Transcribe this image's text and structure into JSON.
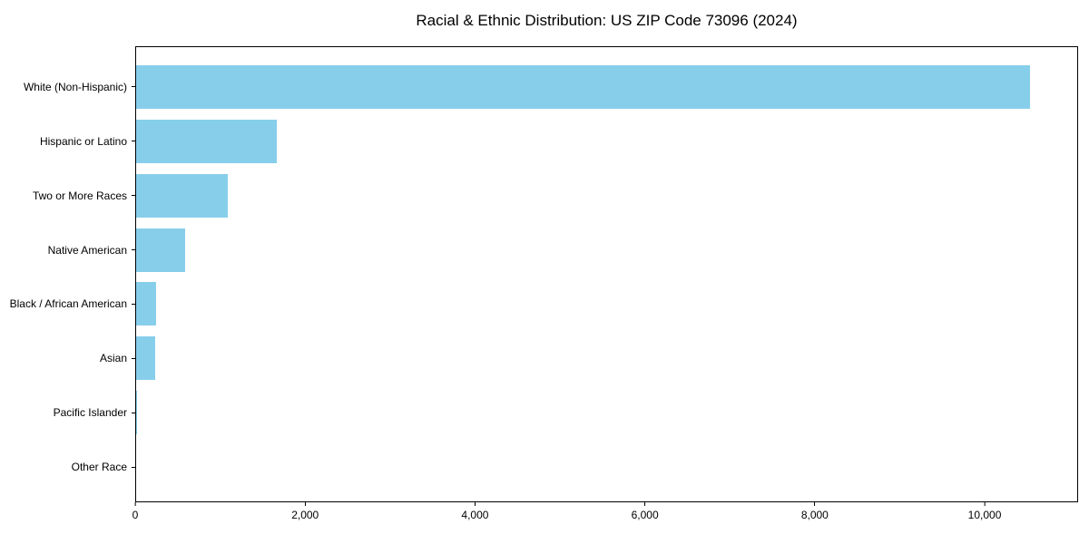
{
  "chart_data": {
    "type": "bar",
    "orientation": "horizontal",
    "title": "Racial & Ethnic Distribution: US ZIP Code 73096 (2024)",
    "categories": [
      "White (Non-Hispanic)",
      "Hispanic or Latino",
      "Two or More Races",
      "Native American",
      "Black / African American",
      "Asian",
      "Pacific Islander",
      "Other Race"
    ],
    "values": [
      10540,
      1655,
      1080,
      580,
      235,
      225,
      10,
      0
    ],
    "xlabel": "",
    "ylabel": "",
    "xlim": [
      0,
      11100
    ],
    "xticks": [
      0,
      2000,
      4000,
      6000,
      8000,
      10000
    ],
    "xtick_labels": [
      "0",
      "2,000",
      "4,000",
      "6,000",
      "8,000",
      "10,000"
    ],
    "bar_color": "#87CEEB",
    "axis_color": "#000000",
    "background_color": "#ffffff",
    "grid": false,
    "legend": "none"
  }
}
